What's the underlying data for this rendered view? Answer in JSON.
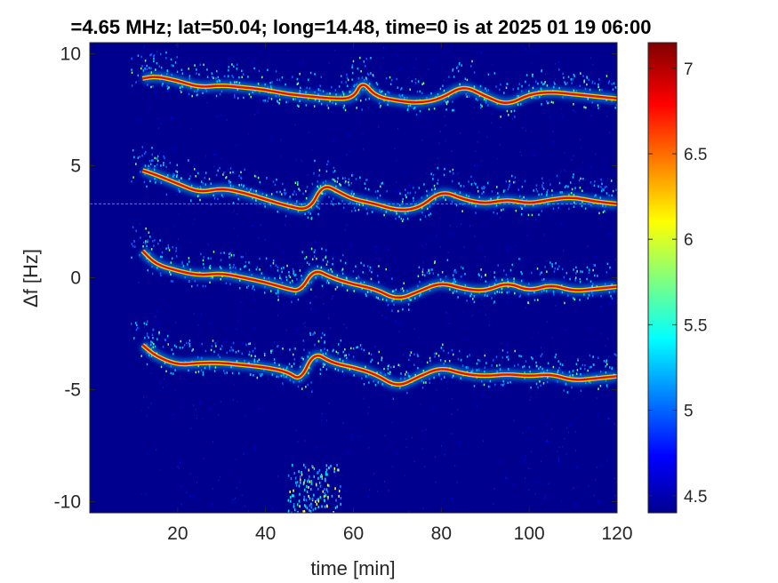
{
  "chart_data": {
    "type": "heatmap",
    "title": "=4.65 MHz;  lat=50.04; long=14.48, time=0 is at 2025 01 19 06:00",
    "xlabel": "time [min]",
    "ylabel": "Δf [Hz]",
    "xlim": [
      0,
      120
    ],
    "ylim": [
      -10.5,
      10.5
    ],
    "x_ticks": [
      "20",
      "40",
      "60",
      "80",
      "100",
      "120"
    ],
    "x_tick_values": [
      20,
      40,
      60,
      80,
      100,
      120
    ],
    "y_ticks": [
      "10",
      "5",
      "0",
      "-5",
      "-10"
    ],
    "y_tick_values": [
      10,
      5,
      0,
      -5,
      -10
    ],
    "colorbar": {
      "range": [
        4.4,
        7.15
      ],
      "ticks": [
        "7",
        "6.5",
        "6",
        "5.5",
        "5",
        "4.5"
      ],
      "tick_values": [
        7,
        6.5,
        6,
        5.5,
        5,
        4.5
      ],
      "colormap": "jet"
    },
    "background_color": "#00008f",
    "grid": false,
    "signal_start_min": 11,
    "reference_line_hz": 3.3,
    "traces": [
      {
        "points": [
          [
            12,
            8.9
          ],
          [
            15,
            9.0
          ],
          [
            20,
            8.8
          ],
          [
            25,
            8.5
          ],
          [
            30,
            8.6
          ],
          [
            35,
            8.5
          ],
          [
            40,
            8.4
          ],
          [
            45,
            8.2
          ],
          [
            50,
            8.1
          ],
          [
            55,
            8.0
          ],
          [
            60,
            8.0
          ],
          [
            62,
            8.8
          ],
          [
            65,
            8.1
          ],
          [
            70,
            7.9
          ],
          [
            75,
            7.8
          ],
          [
            80,
            8.0
          ],
          [
            85,
            8.6
          ],
          [
            90,
            8.1
          ],
          [
            95,
            7.7
          ],
          [
            100,
            8.2
          ],
          [
            105,
            8.3
          ],
          [
            110,
            8.2
          ],
          [
            115,
            8.1
          ],
          [
            120,
            8.0
          ]
        ]
      },
      {
        "points": [
          [
            12,
            4.8
          ],
          [
            15,
            4.6
          ],
          [
            20,
            4.2
          ],
          [
            25,
            3.8
          ],
          [
            30,
            4.0
          ],
          [
            35,
            3.8
          ],
          [
            40,
            3.5
          ],
          [
            45,
            3.2
          ],
          [
            50,
            3.0
          ],
          [
            53,
            4.2
          ],
          [
            57,
            3.8
          ],
          [
            60,
            3.5
          ],
          [
            65,
            3.3
          ],
          [
            70,
            3.0
          ],
          [
            75,
            3.1
          ],
          [
            80,
            3.9
          ],
          [
            85,
            3.5
          ],
          [
            90,
            3.3
          ],
          [
            95,
            3.5
          ],
          [
            100,
            3.3
          ],
          [
            105,
            3.5
          ],
          [
            110,
            3.6
          ],
          [
            115,
            3.4
          ],
          [
            120,
            3.3
          ]
        ]
      },
      {
        "points": [
          [
            12,
            1.2
          ],
          [
            15,
            0.6
          ],
          [
            20,
            0.3
          ],
          [
            25,
            0.1
          ],
          [
            30,
            0.2
          ],
          [
            35,
            0.0
          ],
          [
            40,
            -0.2
          ],
          [
            45,
            -0.5
          ],
          [
            48,
            -0.6
          ],
          [
            51,
            0.4
          ],
          [
            55,
            0.0
          ],
          [
            60,
            -0.3
          ],
          [
            65,
            -0.5
          ],
          [
            70,
            -1.0
          ],
          [
            75,
            -0.6
          ],
          [
            80,
            -0.2
          ],
          [
            85,
            -0.5
          ],
          [
            90,
            -0.6
          ],
          [
            95,
            -0.2
          ],
          [
            100,
            -0.6
          ],
          [
            105,
            -0.3
          ],
          [
            110,
            -0.6
          ],
          [
            115,
            -0.5
          ],
          [
            120,
            -0.4
          ]
        ]
      },
      {
        "points": [
          [
            12,
            -3.0
          ],
          [
            15,
            -3.5
          ],
          [
            20,
            -3.9
          ],
          [
            25,
            -3.8
          ],
          [
            30,
            -3.8
          ],
          [
            35,
            -3.9
          ],
          [
            40,
            -4.0
          ],
          [
            45,
            -4.2
          ],
          [
            48,
            -4.6
          ],
          [
            51,
            -3.3
          ],
          [
            55,
            -3.8
          ],
          [
            60,
            -4.0
          ],
          [
            65,
            -4.3
          ],
          [
            70,
            -4.9
          ],
          [
            75,
            -4.4
          ],
          [
            80,
            -4.0
          ],
          [
            85,
            -4.3
          ],
          [
            90,
            -4.4
          ],
          [
            95,
            -4.3
          ],
          [
            100,
            -4.4
          ],
          [
            105,
            -4.3
          ],
          [
            110,
            -4.6
          ],
          [
            115,
            -4.5
          ],
          [
            120,
            -4.4
          ]
        ]
      }
    ]
  }
}
